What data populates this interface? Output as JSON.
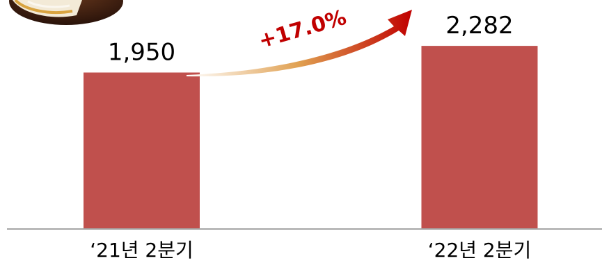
{
  "chart_data": {
    "type": "bar",
    "categories": [
      "‘21년 2분기",
      "‘22년 2분기"
    ],
    "values": [
      1950,
      2282
    ],
    "value_labels": [
      "1,950",
      "2,282"
    ],
    "growth_annotation": "+17.0%",
    "ylim": [
      0,
      2750
    ],
    "grid": false,
    "legend": "none",
    "title": "",
    "xlabel": "",
    "ylabel": ""
  },
  "colors": {
    "bar": "#c0504d",
    "axis": "#a6a6a6",
    "arrow_start": "#ffffff",
    "arrow_mid": "#e0a050",
    "arrow_end": "#c00000",
    "annotation": "#c00000",
    "text": "#000000"
  },
  "decoration": {
    "product_image": "choco-pie-icon"
  }
}
